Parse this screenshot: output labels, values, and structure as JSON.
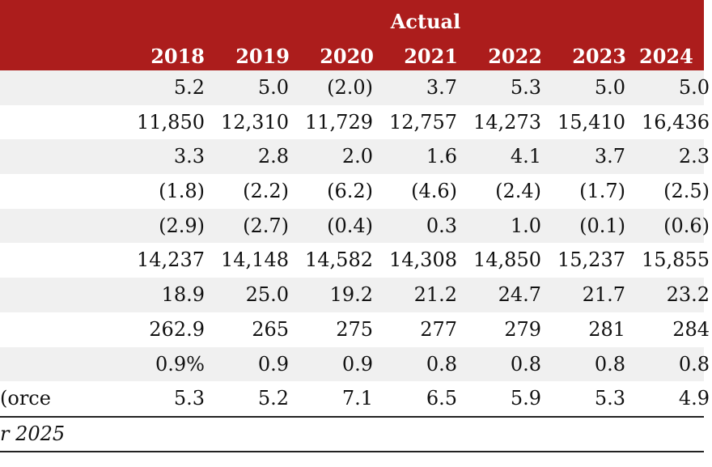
{
  "header": {
    "group_label": "Actual",
    "years": [
      "2018",
      "2019",
      "2020",
      "2021",
      "2022",
      "2023",
      "2024"
    ]
  },
  "rows": [
    {
      "label": "",
      "values": [
        "5.2",
        "5.0",
        "(2.0)",
        "3.7",
        "5.3",
        "5.0",
        "5.0"
      ]
    },
    {
      "label": "",
      "values": [
        "11,850",
        "12,310",
        "11,729",
        "12,757",
        "14,273",
        "15,410",
        "16,436"
      ]
    },
    {
      "label": "",
      "values": [
        "3.3",
        "2.8",
        "2.0",
        "1.6",
        "4.1",
        "3.7",
        "2.3"
      ]
    },
    {
      "label": "",
      "values": [
        "(1.8)",
        "(2.2)",
        "(6.2)",
        "(4.6)",
        "(2.4)",
        "(1.7)",
        "(2.5)"
      ]
    },
    {
      "label": "",
      "values": [
        "(2.9)",
        "(2.7)",
        "(0.4)",
        "0.3",
        "1.0",
        "(0.1)",
        "(0.6)"
      ]
    },
    {
      "label": "",
      "values": [
        "14,237",
        "14,148",
        "14,582",
        "14,308",
        "14,850",
        "15,237",
        "15,855"
      ]
    },
    {
      "label": "",
      "values": [
        "18.9",
        "25.0",
        "19.2",
        "21.2",
        "24.7",
        "21.7",
        "23.2"
      ]
    },
    {
      "label": "",
      "values": [
        "262.9",
        "265",
        "275",
        "277",
        "279",
        "281",
        "284"
      ]
    },
    {
      "label": "",
      "values": [
        "0.9%",
        "0.9",
        "0.9",
        "0.8",
        "0.8",
        "0.8",
        "0.8"
      ]
    },
    {
      "label": "orce)",
      "values": [
        "5.3",
        "5.2",
        "7.1",
        "6.5",
        "5.9",
        "5.3",
        "4.9"
      ]
    }
  ],
  "footnote": "r 2025",
  "colors": {
    "header_bg": "#ac1d1c",
    "row_shade": "#f0f0f0"
  }
}
